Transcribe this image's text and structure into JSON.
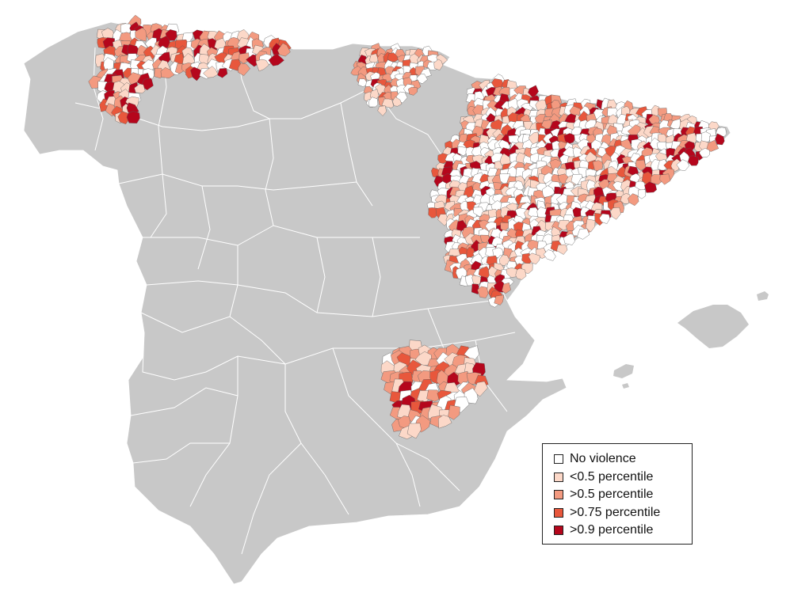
{
  "map": {
    "base_fill": "#c8c8c8",
    "border_color": "#ffffff",
    "region_outline": "#5a5a5a"
  },
  "legend": {
    "items": [
      {
        "label": "No violence",
        "color": "#ffffff"
      },
      {
        "label": "<0.5 percentile",
        "color": "#fcd8c8"
      },
      {
        "label": ">0.5 percentile",
        "color": "#f39a80"
      },
      {
        "label": ">0.75 percentile",
        "color": "#e8573c"
      },
      {
        "label": ">0.9 percentile",
        "color": "#b5061c"
      }
    ]
  }
}
